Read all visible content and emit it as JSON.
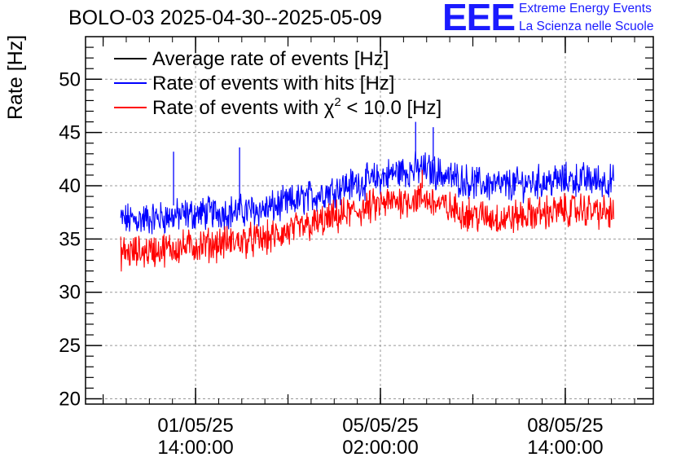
{
  "chart_data": {
    "type": "line",
    "title": "BOLO-03 2025-04-30--2025-05-09",
    "ylabel": "Rate [Hz]",
    "xlabel": "",
    "ylim": [
      19.5,
      54
    ],
    "y_ticks": [
      20,
      25,
      30,
      35,
      40,
      45,
      50
    ],
    "x_ticks": [
      {
        "date": "01/05/25",
        "time": "14:00:00"
      },
      {
        "date": "05/05/25",
        "time": "02:00:00"
      },
      {
        "date": "08/05/25",
        "time": "14:00:00"
      }
    ],
    "grid": true,
    "legend_position": "top-left",
    "series": [
      {
        "name": "Average rate of events [Hz]",
        "color": "#000000",
        "x": [],
        "y": []
      },
      {
        "name": "Rate of events with hits [Hz]",
        "color": "#0000ff",
        "x": [
          "30/04/25 10:00",
          "30/04/25 22:00",
          "01/05/25 10:00",
          "01/05/25 22:00",
          "02/05/25 10:00",
          "02/05/25 22:00",
          "03/05/25 10:00",
          "03/05/25 22:00",
          "04/05/25 10:00",
          "04/05/25 22:00",
          "05/05/25 10:00",
          "05/05/25 22:00",
          "06/05/25 10:00",
          "06/05/25 22:00",
          "07/05/25 10:00",
          "07/05/25 22:00",
          "08/05/25 10:00",
          "08/05/25 22:00",
          "09/05/25 10:00"
        ],
        "y": [
          36.8,
          37.0,
          37.3,
          37.5,
          37.6,
          37.8,
          38.5,
          39.2,
          40.0,
          40.5,
          41.3,
          41.6,
          40.8,
          40.2,
          40.0,
          40.3,
          40.5,
          40.6,
          40.4
        ]
      },
      {
        "name_prefix": "Rate of events with ",
        "name_symbol": "χ",
        "name_sup": "2",
        "name_suffix": " < 10.0 [Hz]",
        "color": "#ff0000",
        "x": [
          "30/04/25 10:00",
          "30/04/25 22:00",
          "01/05/25 10:00",
          "01/05/25 22:00",
          "02/05/25 10:00",
          "02/05/25 22:00",
          "03/05/25 10:00",
          "03/05/25 22:00",
          "04/05/25 10:00",
          "04/05/25 22:00",
          "05/05/25 10:00",
          "05/05/25 22:00",
          "06/05/25 10:00",
          "06/05/25 22:00",
          "07/05/25 10:00",
          "07/05/25 22:00",
          "08/05/25 10:00",
          "08/05/25 22:00",
          "09/05/25 10:00"
        ],
        "y": [
          33.7,
          34.0,
          34.3,
          34.5,
          34.8,
          35.0,
          35.8,
          36.5,
          37.3,
          38.0,
          38.6,
          38.8,
          37.8,
          37.2,
          36.9,
          37.3,
          37.6,
          37.8,
          37.4
        ]
      }
    ],
    "spikes": [
      {
        "x": "01/05/25 04:00",
        "y": 43.2,
        "series": 1
      },
      {
        "x": "02/05/25 10:00",
        "y": 43.6,
        "series": 1
      },
      {
        "x": "05/05/25 18:00",
        "y": 46.0,
        "series": 1
      },
      {
        "x": "06/05/25 02:00",
        "y": 45.5,
        "series": 1
      },
      {
        "x": "05/05/25 21:00",
        "y": 41.5,
        "series": 2
      }
    ]
  },
  "logo": {
    "mark": "EEE",
    "line1": "Extreme Energy Events",
    "line2": "La Scienza nelle Scuole",
    "color": "#1a1aff"
  }
}
